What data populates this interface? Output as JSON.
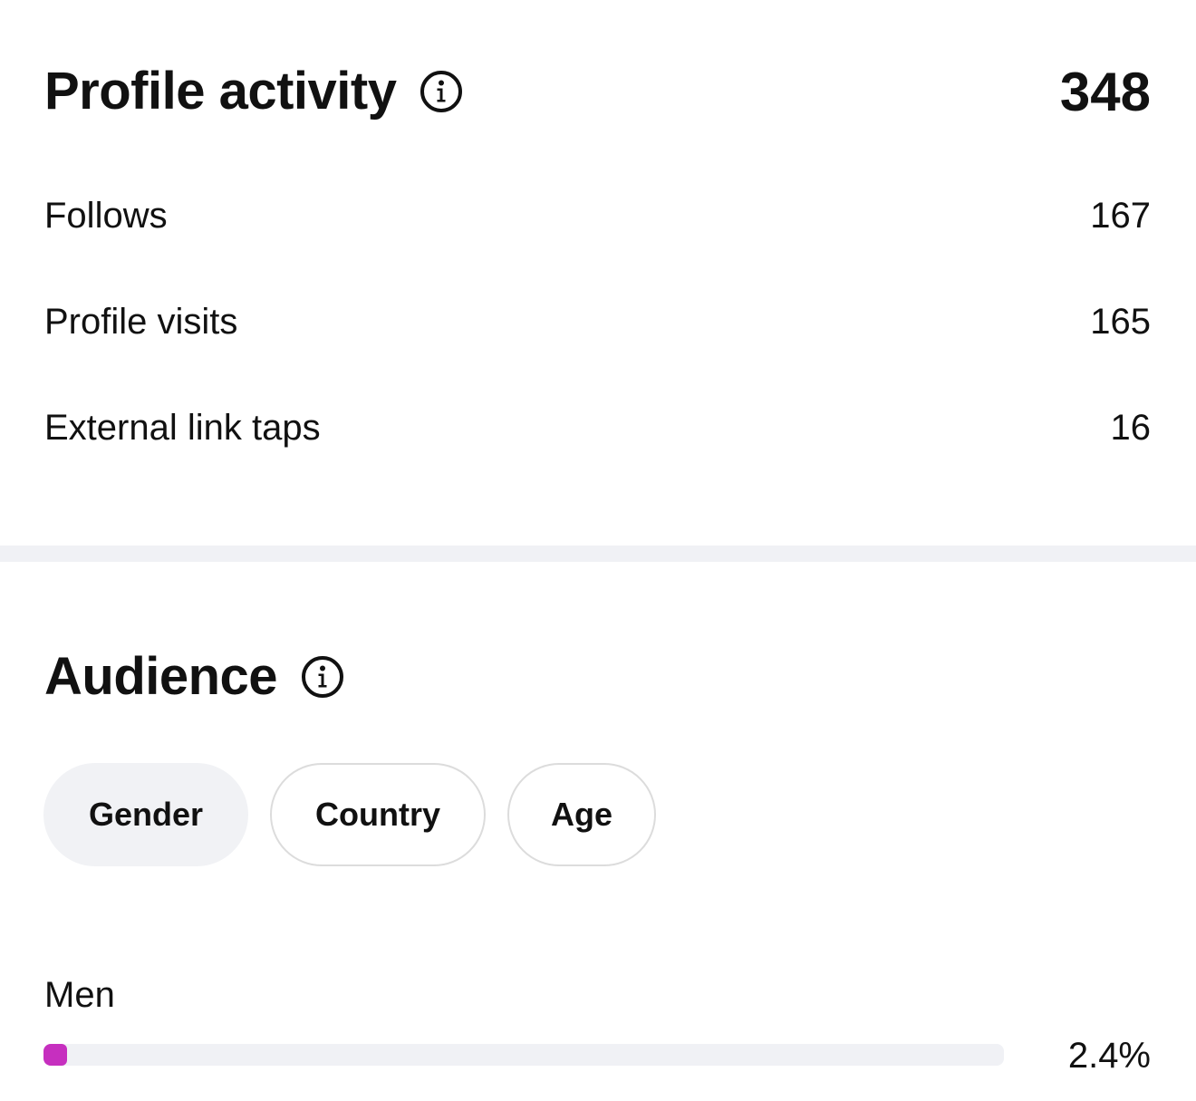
{
  "profile_activity": {
    "title": "Profile activity",
    "info_icon": "info-icon",
    "total": "348",
    "metrics": [
      {
        "label": "Follows",
        "value": "167"
      },
      {
        "label": "Profile visits",
        "value": "165"
      },
      {
        "label": "External link taps",
        "value": "16"
      }
    ]
  },
  "audience": {
    "title": "Audience",
    "info_icon": "info-icon",
    "tabs": [
      {
        "label": "Gender",
        "active": true
      },
      {
        "label": "Country",
        "active": false
      },
      {
        "label": "Age",
        "active": false
      }
    ],
    "bars": [
      {
        "label": "Men",
        "value_text": "2.4%",
        "fraction": 0.024
      }
    ]
  },
  "colors": {
    "bar_fill": "#c62fbf",
    "bar_track": "#f0f1f5",
    "active_tab_bg": "#f1f2f5",
    "divider": "#f0f1f5"
  }
}
